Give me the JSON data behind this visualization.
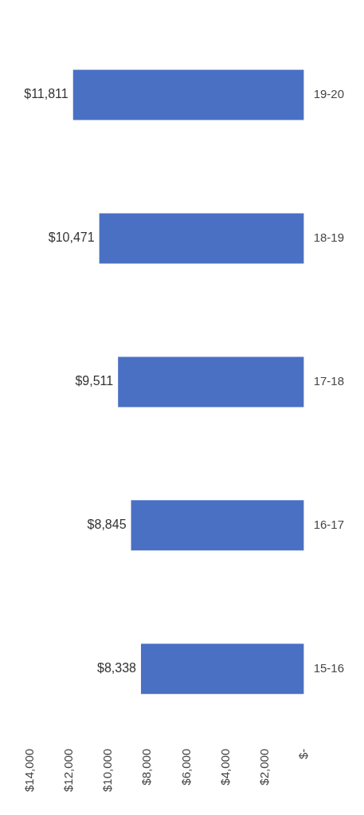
{
  "chart_data": {
    "type": "bar",
    "orientation": "horizontal",
    "categories": [
      "19-20",
      "18-19",
      "17-18",
      "16-17",
      "15-16"
    ],
    "values": [
      11811,
      10471,
      9511,
      8845,
      8338
    ],
    "value_labels": [
      "$11,811",
      "$10,471",
      "$9,511",
      "$8,845",
      "$8,338"
    ],
    "color": "#4a70c4",
    "xlim": [
      14000,
      0
    ],
    "xticks": [
      {
        "value": 0,
        "label": "$-"
      },
      {
        "value": 2000,
        "label": "$2,000"
      },
      {
        "value": 4000,
        "label": "$4,000"
      },
      {
        "value": 6000,
        "label": "$6,000"
      },
      {
        "value": 8000,
        "label": "$8,000"
      },
      {
        "value": 10000,
        "label": "$10,000"
      },
      {
        "value": 12000,
        "label": "$12,000"
      },
      {
        "value": 14000,
        "label": "$14,000"
      }
    ],
    "grid": false,
    "legend": false
  }
}
